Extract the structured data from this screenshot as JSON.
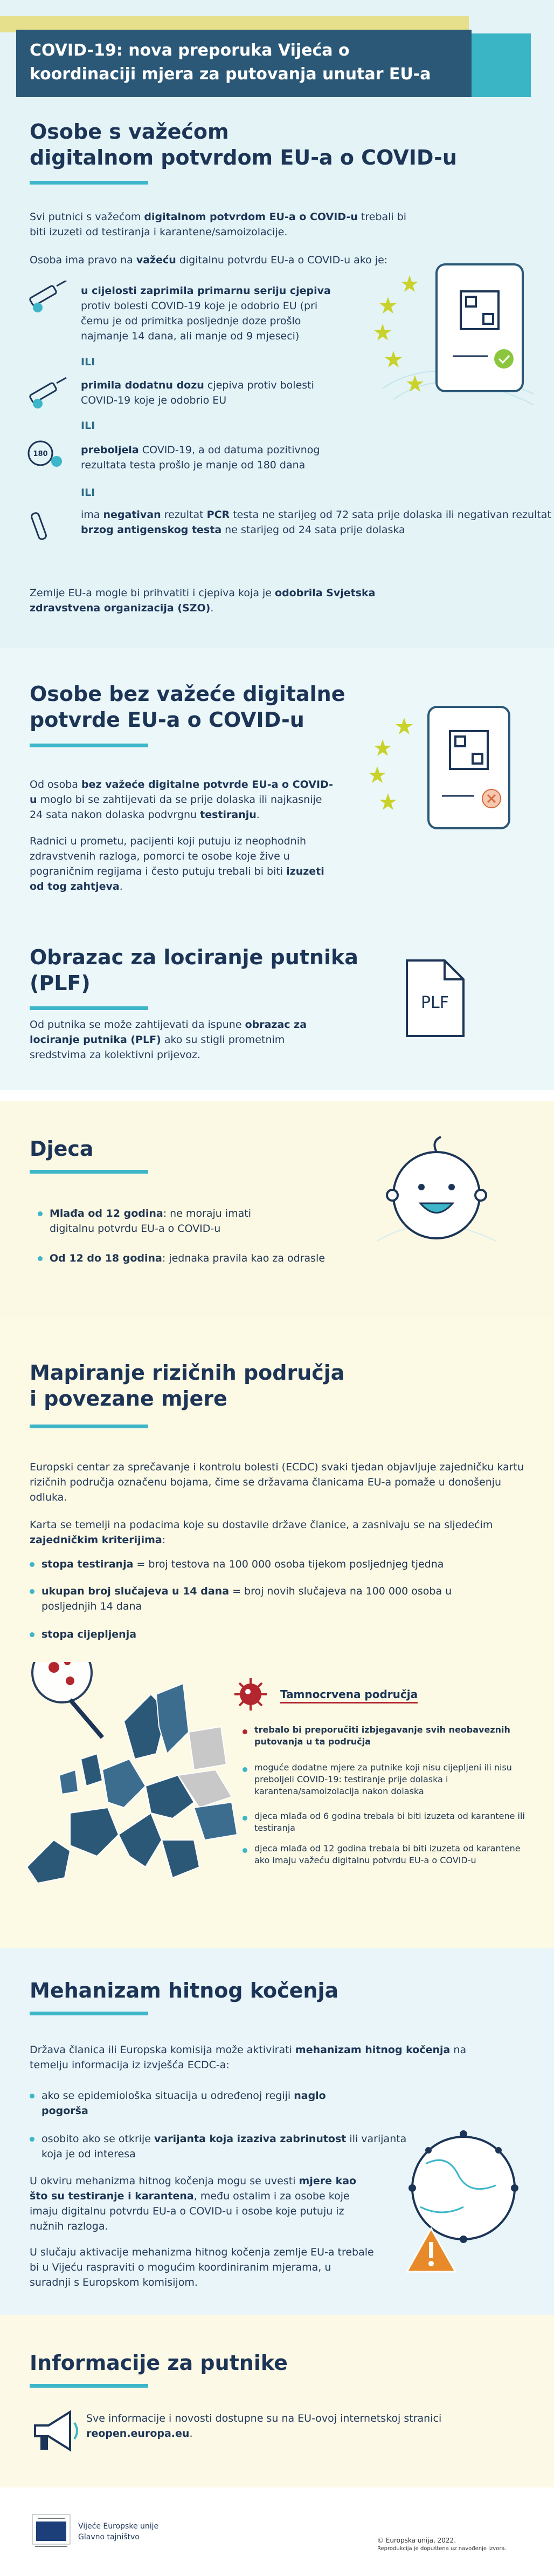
{
  "header": {
    "title": "COVID-19: nova preporuka Vijeća o koordinaciji mjera za putovanja unutar EU-a"
  },
  "sections": [
    {
      "heading": [
        "Osobe s važećom",
        "digitalnom potvrdom EU-a o COVID-u"
      ],
      "paragraphs": [
        [
          "Svi putnici s važećom ",
          {
            "text": "digitalnom potvrdom EU-a o COVID-u",
            "bold": true
          },
          " trebali bi biti izuzeti od testiranja i karantene/samoizolacije."
        ],
        [
          "Osoba ima pravo na ",
          {
            "text": "važeću",
            "bold": true
          },
          " digitalnu potvrdu EU-a o COVID-u ako je:"
        ],
        [
          "Zemlje EU-a mogle bi prihvatiti i cjepiva koja je ",
          {
            "text": "odobrila Svjetska zdravstvena organizacija (SZO)",
            "bold": true
          },
          "."
        ]
      ],
      "items": [
        [
          {
            "text": "u cijelosti zaprimila primarnu seriju cjepiva",
            "bold": true
          },
          " protiv bolesti COVID-19 koje je odobrio EU (pri čemu je od primitka posljednje doze prošlo najmanje 14 dana, ali manje od 9 mjeseci)"
        ],
        [
          {
            "text": "primila dodatnu dozu",
            "bold": true
          },
          " cjepiva protiv bolesti COVID-19 koje je odobrio EU"
        ],
        [
          {
            "text": "preboljela",
            "bold": true
          },
          " COVID-19, a od datuma pozitivnog rezultata testa prošlo je manje od 180 dana"
        ],
        [
          "ima ",
          {
            "text": "negativan",
            "bold": true
          },
          " rezultat ",
          {
            "text": "PCR",
            "bold": true
          },
          " testa ne starijeg od 72 sata prije dolaska ili negativan rezultat ",
          {
            "text": "brzog antigenskog testa",
            "bold": true
          },
          " ne starijeg od 24 sata prije dolaska"
        ]
      ],
      "or_label": "ILI",
      "icon_label": "180"
    },
    {
      "heading": [
        "Osobe bez važeće digitalne",
        "potvrde EU-a o COVID-u"
      ],
      "paragraphs": [
        [
          "Od osoba ",
          {
            "text": "bez važeće digitalne potvrde EU-a o COVID-u",
            "bold": true
          },
          " moglo bi se zahtijevati da se prije dolaska ili najkasnije 24 sata nakon dolaska podvrgnu ",
          {
            "text": "testiranju",
            "bold": true
          },
          "."
        ],
        [
          "Radnici u prometu, pacijenti koji putuju iz neophodnih zdravstvenih razloga, pomorci te osobe koje žive u pograničnim regijama i često putuju trebali bi biti ",
          {
            "text": "izuzeti od tog zahtjeva",
            "bold": true
          },
          "."
        ]
      ]
    },
    {
      "heading": [
        "Obrazac za lociranje putnika",
        "(PLF)"
      ],
      "paragraphs": [
        [
          "Od putnika se može zahtijevati da ispune ",
          {
            "text": "obrazac za lociranje putnika (PLF)",
            "bold": true
          },
          " ako su stigli prometnim sredstvima za kolektivni prijevoz."
        ]
      ],
      "icon_label": "PLF"
    },
    {
      "heading": [
        "Djeca"
      ],
      "bullets": [
        [
          {
            "text": "Mlađa od 12 godina",
            "bold": true
          },
          ": ne moraju imati digitalnu potvrdu EU-a o COVID-u"
        ],
        [
          {
            "text": "Od 12 do 18 godina",
            "bold": true
          },
          ": jednaka pravila kao za odrasle"
        ]
      ]
    },
    {
      "heading": [
        "Mapiranje rizičnih područja",
        "i povezane mjere"
      ],
      "paragraphs": [
        [
          "Europski centar za sprečavanje i kontrolu bolesti (ECDC) svaki tjedan objavljuje zajedničku kartu rizičnih područja označenu bojama, čime se državama članicama EU-a pomaže u donošenju odluka."
        ],
        [
          "Karta se temelji na podacima koje su dostavile države članice, a zasnivaju se na sljedećim ",
          {
            "text": "zajedničkim kriterijima",
            "bold": true
          },
          ":"
        ]
      ],
      "bullets": [
        [
          {
            "text": "stopa testiranja",
            "bold": true
          },
          " = broj testova na 100 000 osoba tijekom posljednjeg tjedna"
        ],
        [
          {
            "text": "ukupan broj slučajeva u 14 dana",
            "bold": true
          },
          " = broj novih slučajeva na 100 000 osoba u posljednjih 14 dana"
        ],
        [
          {
            "text": "stopa cijepljenja",
            "bold": true
          }
        ]
      ],
      "legend": {
        "heading": "Tamnocrvena područja",
        "bullets": [
          [
            {
              "text": "trebalo bi preporučiti izbjegavanje svih neobaveznih putovanja u ta područja",
              "bold": true
            }
          ],
          [
            "moguće dodatne mjere za putnike koji nisu cijepljeni ili nisu preboljeli COVID-19: testiranje prije dolaska i karantena/samoizolacija nakon dolaska"
          ],
          [
            "djeca mlađa od 6 godina trebala bi biti izuzeta od karantene ili testiranja"
          ],
          [
            "djeca mlađa od 12 godina trebala bi biti izuzeta od karantene ako imaju važeću digitalnu potvrdu EU-a o COVID-u"
          ]
        ]
      }
    },
    {
      "heading": [
        "Mehanizam hitnog kočenja"
      ],
      "paragraphs": [
        [
          "Država članica ili Europska komisija može aktivirati ",
          {
            "text": "mehanizam hitnog kočenja",
            "bold": true
          },
          " na temelju informacija iz izvješća ECDC-a:"
        ],
        [
          "U okviru mehanizma hitnog kočenja mogu se uvesti ",
          {
            "text": "mjere kao što su testiranje i karantena",
            "bold": true
          },
          ", među ostalim i za osobe koje imaju digitalnu potvrdu EU-a o COVID-u i osobe koje putuju iz nužnih razloga."
        ],
        [
          "U slučaju aktivacije mehanizma hitnog kočenja zemlje EU-a trebale bi u Vijeću raspraviti o mogućim koordiniranim mjerama, u suradnji s Europskom komisijom."
        ]
      ],
      "bullets": [
        [
          "ako se epidemiološka situacija u određenoj regiji ",
          {
            "text": "naglo pogorša",
            "bold": true
          }
        ],
        [
          "osobito ako se otkrije ",
          {
            "text": "varijanta koja izaziva zabrinutost",
            "bold": true
          },
          " ili varijanta koja je od interesa"
        ]
      ]
    },
    {
      "heading": [
        "Informacije za putnike"
      ],
      "paragraphs": [
        [
          "Sve informacije i novosti dostupne su na EU-ovoj internetskoj stranici ",
          {
            "text": "reopen.europa.eu",
            "bold": true
          },
          "."
        ]
      ]
    }
  ],
  "footer": {
    "institution": "Vijeće Europske unije",
    "department": "Glavno tajništvo",
    "copyright": "© Europska unija, 2022.",
    "reproduction": "Reprodukcija je dopuštena uz navođenje izvora."
  }
}
